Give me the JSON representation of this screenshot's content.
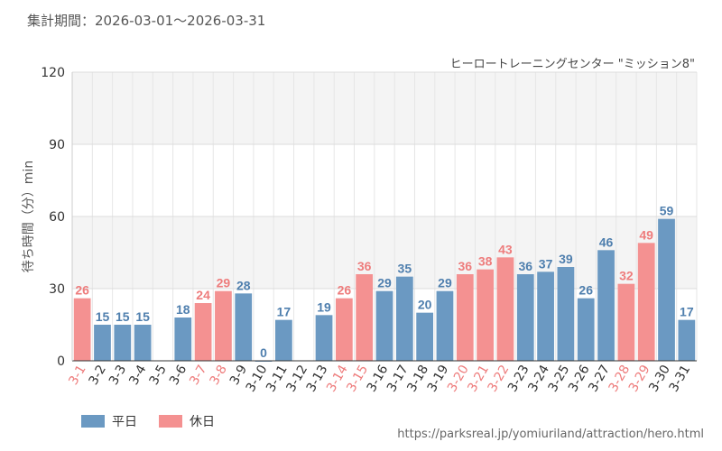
{
  "header": {
    "period": "集計期間：2026-03-01～2026-03-31",
    "attraction": "ヒーロートレーニングセンター \"ミッション8\""
  },
  "legend": {
    "weekday_label": "平日",
    "holiday_label": "休日"
  },
  "source": "https://parksreal.jp/yomiuriland/attraction/hero.html",
  "colors": {
    "weekday": "#6b99c2",
    "holiday": "#f49191",
    "weekday_text": "#4f7fae",
    "holiday_text": "#ee7c7c"
  },
  "chart_data": {
    "type": "bar",
    "ylabel": "待ち時間（分）min",
    "ylim": [
      0,
      120
    ],
    "yticks": [
      0,
      30,
      60,
      90,
      120
    ],
    "grid": true,
    "legend_position": "bottom-left",
    "categories": [
      "3-1",
      "3-2",
      "3-3",
      "3-4",
      "3-5",
      "3-6",
      "3-7",
      "3-8",
      "3-9",
      "3-10",
      "3-11",
      "3-12",
      "3-13",
      "3-14",
      "3-15",
      "3-16",
      "3-17",
      "3-18",
      "3-19",
      "3-20",
      "3-21",
      "3-22",
      "3-23",
      "3-24",
      "3-25",
      "3-26",
      "3-27",
      "3-28",
      "3-29",
      "3-30",
      "3-31"
    ],
    "values": [
      26,
      15,
      15,
      15,
      null,
      18,
      24,
      29,
      28,
      0,
      17,
      null,
      19,
      26,
      36,
      29,
      35,
      20,
      29,
      36,
      38,
      43,
      36,
      37,
      39,
      26,
      46,
      32,
      49,
      59,
      17
    ],
    "day_type": [
      "holiday",
      "weekday",
      "weekday",
      "weekday",
      "weekday",
      "weekday",
      "holiday",
      "holiday",
      "weekday",
      "weekday",
      "weekday",
      "weekday",
      "weekday",
      "holiday",
      "holiday",
      "weekday",
      "weekday",
      "weekday",
      "weekday",
      "holiday",
      "holiday",
      "holiday",
      "weekday",
      "weekday",
      "weekday",
      "weekday",
      "weekday",
      "holiday",
      "holiday",
      "weekday",
      "weekday"
    ]
  }
}
